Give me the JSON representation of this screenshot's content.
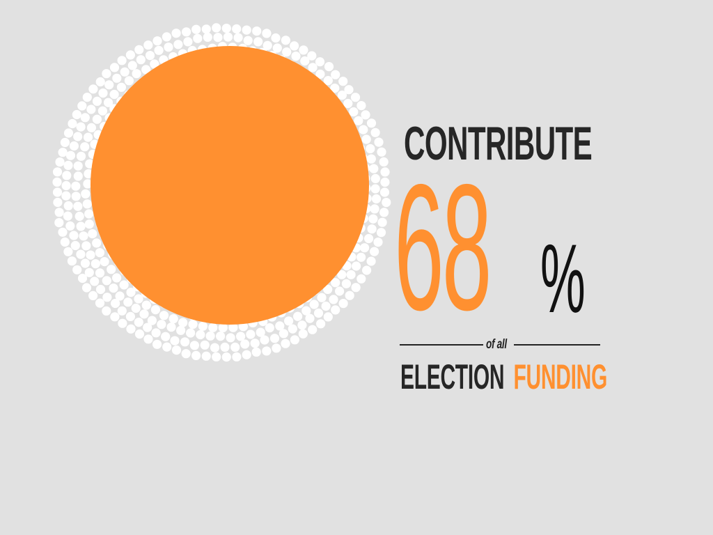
{
  "headline": "CONTRIBUTE",
  "stat": {
    "number": "68",
    "unit": "%",
    "qualifier": "of all"
  },
  "subject": {
    "word1": "ELECTION",
    "word2": "FUNDING"
  },
  "graphic": {
    "type": "ring-of-dots-around-circle",
    "share_percent": 68
  },
  "colors": {
    "background": "#e1e1e1",
    "accent": "#ff9030",
    "text": "#262626",
    "dots": "#ffffff"
  }
}
